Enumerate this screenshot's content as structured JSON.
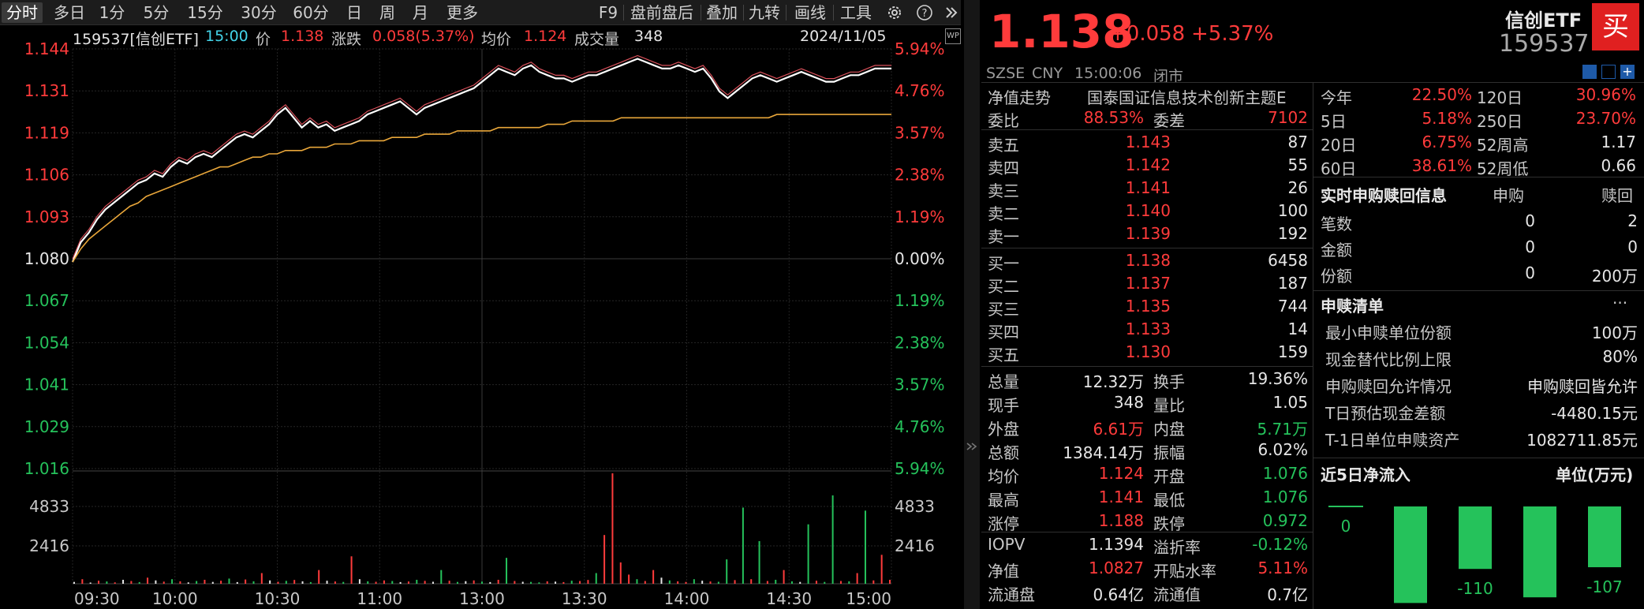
{
  "toolbar": {
    "tabs": [
      "分时",
      "多日",
      "1分",
      "5分",
      "15分",
      "30分",
      "60分",
      "日",
      "周",
      "月",
      "更多"
    ],
    "right_items": [
      "F9",
      "盘前盘后",
      "叠加",
      "九转",
      "画线",
      "工具"
    ],
    "gear_icon": "gear-icon",
    "help_icon": "help-icon",
    "collapse_icon": "double-chevron-right-icon"
  },
  "info": {
    "code_name": "159537[信创ETF]",
    "time": "15:00",
    "price_label": "价",
    "price": "1.138",
    "change_label": "涨跌",
    "change": "0.058(5.37%)",
    "avg_label": "均价",
    "avg": "1.124",
    "vol_label": "成交量",
    "vol": "348",
    "date": "2024/11/05",
    "wp_icon": "wp-icon"
  },
  "chart_data": {
    "type": "line",
    "title": "",
    "prev_close": 1.08,
    "price_axis_left": [
      "1.144",
      "1.131",
      "1.119",
      "1.106",
      "1.093",
      "1.080",
      "1.067",
      "1.054",
      "1.041",
      "1.029",
      "1.016"
    ],
    "pct_axis_right": [
      "5.94%",
      "4.76%",
      "3.57%",
      "2.38%",
      "1.19%",
      "0.00%",
      "1.19%",
      "2.38%",
      "3.57%",
      "4.76%",
      "5.94%"
    ],
    "volume_axis_left": [
      "4833",
      "2416"
    ],
    "volume_axis_right": [
      "4833",
      "2416"
    ],
    "x_ticks": [
      "09:30",
      "10:00",
      "10:30",
      "11:00",
      "13:00",
      "13:30",
      "14:00",
      "14:30",
      "15:00"
    ],
    "ylim": [
      1.016,
      1.144
    ],
    "volume_max": 7249,
    "series": [
      {
        "name": "价",
        "color": "#ffffff",
        "values": [
          1.079,
          1.085,
          1.088,
          1.092,
          1.095,
          1.097,
          1.099,
          1.101,
          1.103,
          1.104,
          1.106,
          1.105,
          1.108,
          1.11,
          1.109,
          1.111,
          1.112,
          1.111,
          1.113,
          1.115,
          1.117,
          1.118,
          1.117,
          1.119,
          1.121,
          1.124,
          1.126,
          1.123,
          1.12,
          1.122,
          1.12,
          1.121,
          1.119,
          1.12,
          1.121,
          1.122,
          1.124,
          1.125,
          1.126,
          1.127,
          1.128,
          1.126,
          1.124,
          1.126,
          1.127,
          1.128,
          1.129,
          1.13,
          1.131,
          1.132,
          1.134,
          1.136,
          1.138,
          1.137,
          1.136,
          1.138,
          1.139,
          1.137,
          1.136,
          1.135,
          1.135,
          1.134,
          1.135,
          1.136,
          1.136,
          1.137,
          1.138,
          1.139,
          1.14,
          1.141,
          1.14,
          1.139,
          1.138,
          1.138,
          1.139,
          1.138,
          1.137,
          1.138,
          1.135,
          1.131,
          1.129,
          1.131,
          1.133,
          1.135,
          1.136,
          1.135,
          1.134,
          1.135,
          1.136,
          1.137,
          1.136,
          1.135,
          1.134,
          1.134,
          1.135,
          1.136,
          1.136,
          1.137,
          1.138,
          1.138,
          1.138
        ]
      },
      {
        "name": "均价",
        "color": "#e8a63a",
        "values": [
          1.079,
          1.083,
          1.086,
          1.088,
          1.09,
          1.092,
          1.094,
          1.096,
          1.097,
          1.099,
          1.1,
          1.101,
          1.102,
          1.103,
          1.104,
          1.105,
          1.106,
          1.107,
          1.108,
          1.108,
          1.109,
          1.11,
          1.111,
          1.111,
          1.112,
          1.112,
          1.113,
          1.113,
          1.113,
          1.114,
          1.114,
          1.114,
          1.115,
          1.115,
          1.115,
          1.116,
          1.116,
          1.116,
          1.116,
          1.117,
          1.117,
          1.117,
          1.117,
          1.118,
          1.118,
          1.118,
          1.118,
          1.119,
          1.119,
          1.119,
          1.119,
          1.119,
          1.12,
          1.12,
          1.12,
          1.12,
          1.12,
          1.12,
          1.121,
          1.121,
          1.121,
          1.122,
          1.122,
          1.122,
          1.122,
          1.122,
          1.122,
          1.123,
          1.123,
          1.123,
          1.123,
          1.123,
          1.123,
          1.123,
          1.123,
          1.123,
          1.123,
          1.123,
          1.123,
          1.123,
          1.123,
          1.123,
          1.123,
          1.123,
          1.123,
          1.123,
          1.124,
          1.124,
          1.124,
          1.124,
          1.124,
          1.124,
          1.124,
          1.124,
          1.124,
          1.124,
          1.124,
          1.124,
          1.124,
          1.124,
          1.124
        ]
      }
    ],
    "volume": [
      120,
      300,
      80,
      200,
      150,
      90,
      260,
      180,
      110,
      400,
      220,
      140,
      300,
      160,
      90,
      180,
      260,
      120,
      200,
      340,
      110,
      280,
      160,
      700,
      220,
      130,
      190,
      250,
      160,
      110,
      900,
      200,
      150,
      120,
      1800,
      300,
      160,
      130,
      220,
      180,
      110,
      150,
      260,
      190,
      130,
      900,
      200,
      120,
      170,
      220,
      140,
      110,
      260,
      1700,
      180,
      130,
      120,
      90,
      160,
      140,
      110,
      200,
      180,
      250,
      700,
      3200,
      7249,
      1400,
      600,
      300,
      180,
      900,
      400,
      220,
      160,
      120,
      300,
      200,
      150,
      130,
      1600,
      240,
      5000,
      300,
      2800,
      180,
      260,
      900,
      160,
      120,
      3900,
      200,
      120,
      5800,
      180,
      160,
      700,
      4800,
      220,
      1900,
      260
    ],
    "volume_colors": [
      "w",
      "r",
      "w",
      "r",
      "g",
      "r",
      "w",
      "r",
      "g",
      "r",
      "w",
      "r",
      "g",
      "r",
      "w",
      "g",
      "r",
      "w",
      "r",
      "g",
      "w",
      "r",
      "g",
      "r",
      "w",
      "r",
      "g",
      "r",
      "w",
      "g",
      "r",
      "w",
      "r",
      "g",
      "r",
      "w",
      "g",
      "r",
      "r",
      "g",
      "w",
      "r",
      "g",
      "r",
      "w",
      "g",
      "r",
      "g",
      "w",
      "r",
      "g",
      "w",
      "r",
      "g",
      "r",
      "w",
      "g",
      "g",
      "r",
      "w",
      "r",
      "g",
      "r",
      "r",
      "g",
      "r",
      "r",
      "r",
      "r",
      "g",
      "r",
      "r",
      "w",
      "g",
      "r",
      "r",
      "g",
      "w",
      "r",
      "g",
      "g",
      "r",
      "g",
      "r",
      "g",
      "r",
      "g",
      "r",
      "g",
      "w",
      "g",
      "r",
      "g",
      "g",
      "r",
      "g",
      "r",
      "g",
      "r",
      "r",
      "r"
    ]
  },
  "quote": {
    "price": "1.138",
    "change": "+0.058",
    "change_pct": "+5.37%",
    "name": "信创ETF",
    "code": "159537",
    "buy_label": "买",
    "exchange": "SZSE",
    "currency": "CNY",
    "time": "15:00:06",
    "status": "闭市",
    "nav_trend_label": "净值走势",
    "fund_full_name": "国泰国证信息技术创新主题E",
    "weibi_label": "委比",
    "weibi": "88.53%",
    "weicha_label": "委差",
    "weicha": "7102",
    "asks": [
      {
        "label": "卖五",
        "price": "1.143",
        "vol": "87"
      },
      {
        "label": "卖四",
        "price": "1.142",
        "vol": "55"
      },
      {
        "label": "卖三",
        "price": "1.141",
        "vol": "26"
      },
      {
        "label": "卖二",
        "price": "1.140",
        "vol": "100"
      },
      {
        "label": "卖一",
        "price": "1.139",
        "vol": "192"
      }
    ],
    "bids": [
      {
        "label": "买一",
        "price": "1.138",
        "vol": "6458"
      },
      {
        "label": "买二",
        "price": "1.137",
        "vol": "187"
      },
      {
        "label": "买三",
        "price": "1.135",
        "vol": "744"
      },
      {
        "label": "买四",
        "price": "1.133",
        "vol": "14"
      },
      {
        "label": "买五",
        "price": "1.130",
        "vol": "159"
      }
    ],
    "stats": [
      [
        {
          "l": "总量",
          "v": "12.32万",
          "c": "white"
        },
        {
          "l": "换手",
          "v": "19.36%",
          "c": "white"
        }
      ],
      [
        {
          "l": "现手",
          "v": "348",
          "c": "white"
        },
        {
          "l": "量比",
          "v": "1.05",
          "c": "white"
        }
      ],
      [
        {
          "l": "外盘",
          "v": "6.61万",
          "c": "red"
        },
        {
          "l": "内盘",
          "v": "5.71万",
          "c": "green"
        }
      ],
      [
        {
          "l": "总额",
          "v": "1384.14万",
          "c": "white"
        },
        {
          "l": "振幅",
          "v": "6.02%",
          "c": "white"
        }
      ],
      [
        {
          "l": "均价",
          "v": "1.124",
          "c": "red"
        },
        {
          "l": "开盘",
          "v": "1.076",
          "c": "green"
        }
      ],
      [
        {
          "l": "最高",
          "v": "1.141",
          "c": "red"
        },
        {
          "l": "最低",
          "v": "1.076",
          "c": "green"
        }
      ],
      [
        {
          "l": "涨停",
          "v": "1.188",
          "c": "red"
        },
        {
          "l": "跌停",
          "v": "0.972",
          "c": "green"
        }
      ]
    ],
    "stats2": [
      [
        {
          "l": "IOPV",
          "v": "1.1394",
          "c": "white"
        },
        {
          "l": "溢折率",
          "v": "-0.12%",
          "c": "green"
        }
      ],
      [
        {
          "l": "净值",
          "v": "1.0827",
          "c": "red"
        },
        {
          "l": "开贴水率",
          "v": "5.11%",
          "c": "red"
        }
      ],
      [
        {
          "l": "流通盘",
          "v": "0.64亿",
          "c": "white"
        },
        {
          "l": "流通值",
          "v": "0.7亿",
          "c": "white"
        }
      ]
    ]
  },
  "perf": [
    [
      {
        "l": "今年",
        "v": "22.50%",
        "c": "red"
      },
      {
        "l": "120日",
        "v": "30.96%",
        "c": "red"
      }
    ],
    [
      {
        "l": "5日",
        "v": "5.18%",
        "c": "red"
      },
      {
        "l": "250日",
        "v": "23.70%",
        "c": "red"
      }
    ],
    [
      {
        "l": "20日",
        "v": "6.75%",
        "c": "red"
      },
      {
        "l": "52周高",
        "v": "1.17",
        "c": "white"
      }
    ],
    [
      {
        "l": "60日",
        "v": "38.61%",
        "c": "red"
      },
      {
        "l": "52周低",
        "v": "0.66",
        "c": "white"
      }
    ]
  ],
  "redemption": {
    "title": "实时申购赎回信息",
    "col_buy": "申购",
    "col_sell": "赎回",
    "rows": [
      {
        "l": "笔数",
        "a": "0",
        "b": "2"
      },
      {
        "l": "金额",
        "a": "0",
        "b": "0"
      },
      {
        "l": "份额",
        "a": "0",
        "b": "200万"
      }
    ]
  },
  "list": {
    "title": "申赎清单",
    "more": "···",
    "rows": [
      {
        "l": "最小申赎单位份额",
        "v": "100万"
      },
      {
        "l": "现金替代比例上限",
        "v": "80%"
      },
      {
        "l": "申购赎回允许情况",
        "v": "申购赎回皆允许"
      },
      {
        "l": "T日预估现金差额",
        "v": "-4480.15元"
      },
      {
        "l": "T-1日单位申赎资产",
        "v": "1082711.85元"
      }
    ]
  },
  "flow": {
    "title": "近5日净流入",
    "unit": "单位(万元)",
    "labels": [
      "0",
      "",
      "-110",
      "",
      "-107"
    ],
    "values": [
      0,
      -170,
      -110,
      -160,
      -107
    ]
  }
}
